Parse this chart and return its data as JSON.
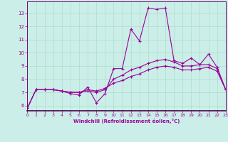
{
  "xlabel": "Windchill (Refroidissement éolien,°C)",
  "background_color": "#cceee8",
  "grid_color": "#aaddcc",
  "line_color": "#990099",
  "spine_color": "#770077",
  "x_values": [
    0,
    1,
    2,
    3,
    4,
    5,
    6,
    7,
    8,
    9,
    10,
    11,
    12,
    13,
    14,
    15,
    16,
    17,
    18,
    19,
    20,
    21,
    22,
    23
  ],
  "series1": [
    5.8,
    7.2,
    7.2,
    7.2,
    7.1,
    6.9,
    6.8,
    7.4,
    6.2,
    6.9,
    8.8,
    8.8,
    11.8,
    10.9,
    13.4,
    13.3,
    13.4,
    9.4,
    9.2,
    9.6,
    9.1,
    9.9,
    8.9,
    7.2
  ],
  "series2": [
    5.8,
    7.2,
    7.2,
    7.2,
    7.1,
    7.0,
    7.0,
    7.1,
    7.0,
    7.2,
    8.0,
    8.3,
    8.7,
    8.9,
    9.2,
    9.4,
    9.5,
    9.3,
    9.0,
    9.0,
    9.1,
    9.1,
    8.8,
    7.2
  ],
  "series3": [
    5.8,
    7.2,
    7.2,
    7.2,
    7.1,
    7.0,
    7.0,
    7.2,
    7.1,
    7.3,
    7.7,
    7.9,
    8.2,
    8.4,
    8.7,
    8.9,
    9.0,
    8.9,
    8.7,
    8.7,
    8.8,
    8.9,
    8.6,
    7.2
  ],
  "ylim": [
    5.6,
    13.9
  ],
  "yticks": [
    6,
    7,
    8,
    9,
    10,
    11,
    12,
    13
  ],
  "xlim": [
    0,
    23
  ],
  "xticks": [
    0,
    1,
    2,
    3,
    4,
    5,
    6,
    7,
    8,
    9,
    10,
    11,
    12,
    13,
    14,
    15,
    16,
    17,
    18,
    19,
    20,
    21,
    22,
    23
  ]
}
